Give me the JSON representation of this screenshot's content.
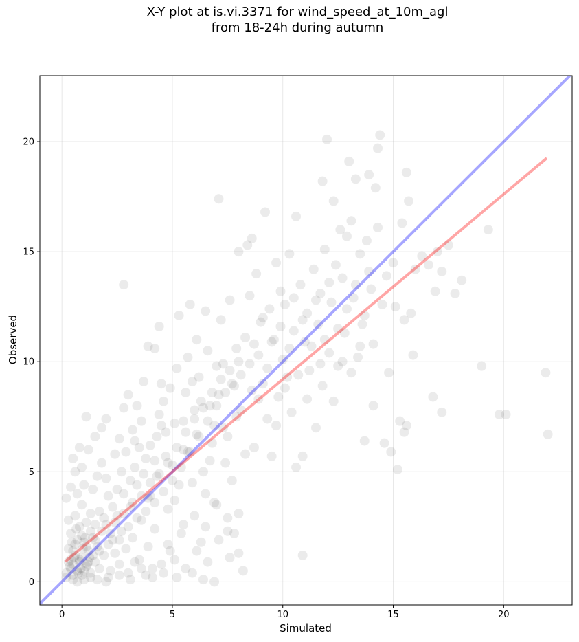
{
  "chart_data": {
    "type": "scatter",
    "title_line1": "X-Y plot at is.vi.3371 for wind_speed_at_10m_agl",
    "title_line2": "from 18-24h during autumn",
    "xlabel": "Simulated",
    "ylabel": "Observed",
    "xlim": [
      -1.0,
      23.1
    ],
    "ylim": [
      -1.05,
      23.0
    ],
    "x_ticks": [
      0,
      5,
      10,
      15,
      20
    ],
    "y_ticks": [
      0,
      5,
      10,
      15,
      20
    ],
    "grid": true,
    "legend": "none",
    "point_color": "#000000",
    "point_alpha": 0.08,
    "identity_line": {
      "x": [
        -1.0,
        23.1
      ],
      "y": [
        -1.0,
        23.1
      ],
      "color": "#0000ff"
    },
    "fit_line": {
      "x": [
        0.15,
        21.95
      ],
      "y": [
        0.92,
        19.25
      ],
      "color": "#ff0000"
    },
    "points": [
      [
        0.3,
        1.5
      ],
      [
        0.5,
        0.8
      ],
      [
        0.6,
        1.2
      ],
      [
        0.7,
        0.5
      ],
      [
        0.8,
        1.0
      ],
      [
        0.9,
        0.3
      ],
      [
        1.0,
        1.8
      ],
      [
        1.1,
        0.7
      ],
      [
        0.4,
        2.2
      ],
      [
        0.2,
        0.4
      ],
      [
        0.5,
        0.1
      ],
      [
        0.8,
        2.5
      ],
      [
        1.2,
        1.4
      ],
      [
        1.3,
        0.2
      ],
      [
        0.6,
        3.0
      ],
      [
        0.3,
        2.8
      ],
      [
        0.9,
        3.5
      ],
      [
        1.4,
        2.0
      ],
      [
        1.5,
        0.9
      ],
      [
        1.6,
        1.6
      ],
      [
        0.2,
        3.8
      ],
      [
        0.4,
        4.3
      ],
      [
        0.6,
        5.0
      ],
      [
        0.5,
        5.6
      ],
      [
        0.7,
        4.0
      ],
      [
        1.0,
        4.4
      ],
      [
        0.9,
        5.2
      ],
      [
        1.2,
        6.0
      ],
      [
        0.8,
        6.1
      ],
      [
        1.5,
        6.6
      ],
      [
        1.1,
        7.5
      ],
      [
        1.8,
        7.0
      ],
      [
        2.0,
        7.4
      ],
      [
        1.7,
        3.2
      ],
      [
        2.0,
        2.6
      ],
      [
        1.9,
        1.2
      ],
      [
        2.2,
        0.5
      ],
      [
        2.3,
        1.9
      ],
      [
        2.5,
        3.0
      ],
      [
        2.6,
        0.8
      ],
      [
        2.7,
        2.3
      ],
      [
        2.8,
        4.0
      ],
      [
        2.9,
        1.5
      ],
      [
        3.0,
        0.4
      ],
      [
        3.1,
        3.4
      ],
      [
        3.2,
        2.0
      ],
      [
        3.3,
        5.2
      ],
      [
        3.4,
        4.4
      ],
      [
        3.5,
        1.0
      ],
      [
        3.6,
        2.8
      ],
      [
        2.4,
        5.8
      ],
      [
        2.6,
        6.5
      ],
      [
        2.8,
        7.9
      ],
      [
        3.0,
        8.5
      ],
      [
        3.2,
        6.9
      ],
      [
        3.4,
        8.0
      ],
      [
        3.6,
        7.3
      ],
      [
        3.8,
        5.6
      ],
      [
        3.9,
        3.8
      ],
      [
        4.0,
        6.2
      ],
      [
        4.1,
        0.6
      ],
      [
        4.2,
        2.4
      ],
      [
        4.3,
        4.8
      ],
      [
        4.4,
        7.6
      ],
      [
        4.5,
        9.0
      ],
      [
        4.6,
        8.2
      ],
      [
        4.7,
        6.8
      ],
      [
        4.8,
        3.3
      ],
      [
        4.9,
        1.4
      ],
      [
        5.0,
        5.3
      ],
      [
        3.7,
        9.1
      ],
      [
        3.9,
        10.7
      ],
      [
        4.2,
        10.6
      ],
      [
        4.4,
        11.6
      ],
      [
        5.1,
        7.2
      ],
      [
        5.2,
        9.7
      ],
      [
        5.3,
        12.1
      ],
      [
        5.4,
        2.2
      ],
      [
        5.5,
        6.0
      ],
      [
        5.6,
        8.6
      ],
      [
        5.7,
        10.2
      ],
      [
        5.8,
        12.6
      ],
      [
        5.9,
        4.5
      ],
      [
        6.0,
        7.8
      ],
      [
        6.1,
        11.0
      ],
      [
        6.2,
        9.3
      ],
      [
        6.3,
        1.8
      ],
      [
        6.4,
        5.0
      ],
      [
        6.5,
        12.3
      ],
      [
        6.6,
        10.5
      ],
      [
        6.7,
        8.0
      ],
      [
        6.8,
        6.3
      ],
      [
        6.9,
        3.6
      ],
      [
        7.0,
        9.8
      ],
      [
        7.1,
        17.4
      ],
      [
        7.2,
        11.9
      ],
      [
        7.3,
        7.0
      ],
      [
        7.4,
        5.4
      ],
      [
        7.5,
        2.9
      ],
      [
        7.6,
        12.8
      ],
      [
        2.8,
        13.5
      ],
      [
        6.9,
        0.0
      ],
      [
        6.4,
        0.1
      ],
      [
        5.9,
        0.4
      ],
      [
        7.8,
        2.2
      ],
      [
        8.0,
        1.3
      ],
      [
        8.2,
        0.5
      ],
      [
        7.7,
        4.6
      ],
      [
        7.9,
        7.5
      ],
      [
        8.1,
        9.4
      ],
      [
        8.3,
        11.1
      ],
      [
        8.4,
        15.3
      ],
      [
        8.5,
        13.0
      ],
      [
        8.6,
        8.7
      ],
      [
        8.7,
        6.1
      ],
      [
        8.8,
        14.0
      ],
      [
        8.9,
        10.3
      ],
      [
        9.0,
        11.8
      ],
      [
        9.1,
        9.0
      ],
      [
        9.2,
        16.8
      ],
      [
        8.6,
        15.6
      ],
      [
        8.0,
        15.0
      ],
      [
        9.3,
        7.4
      ],
      [
        9.4,
        12.4
      ],
      [
        9.5,
        5.7
      ],
      [
        9.6,
        11.0
      ],
      [
        9.7,
        14.5
      ],
      [
        9.8,
        8.4
      ],
      [
        9.9,
        13.2
      ],
      [
        10.0,
        10.1
      ],
      [
        10.1,
        12.6
      ],
      [
        10.2,
        9.3
      ],
      [
        10.3,
        14.9
      ],
      [
        10.4,
        7.7
      ],
      [
        10.5,
        11.4
      ],
      [
        10.6,
        16.6
      ],
      [
        10.6,
        5.2
      ],
      [
        10.8,
        13.5
      ],
      [
        10.9,
        5.7
      ],
      [
        11.0,
        10.9
      ],
      [
        10.9,
        1.2
      ],
      [
        11.1,
        12.2
      ],
      [
        11.2,
        9.6
      ],
      [
        11.4,
        14.2
      ],
      [
        11.5,
        7.0
      ],
      [
        11.6,
        11.7
      ],
      [
        11.7,
        13.1
      ],
      [
        11.8,
        8.9
      ],
      [
        11.9,
        15.1
      ],
      [
        12.0,
        20.1
      ],
      [
        11.8,
        18.2
      ],
      [
        12.1,
        10.4
      ],
      [
        12.2,
        12.7
      ],
      [
        12.3,
        17.3
      ],
      [
        12.4,
        14.4
      ],
      [
        12.5,
        9.8
      ],
      [
        12.6,
        16.0
      ],
      [
        12.7,
        13.8
      ],
      [
        12.8,
        11.3
      ],
      [
        12.9,
        15.7
      ],
      [
        13.0,
        19.1
      ],
      [
        13.1,
        16.4
      ],
      [
        13.2,
        12.9
      ],
      [
        13.3,
        18.3
      ],
      [
        13.4,
        10.2
      ],
      [
        13.5,
        14.9
      ],
      [
        13.6,
        11.7
      ],
      [
        13.7,
        6.4
      ],
      [
        13.8,
        15.5
      ],
      [
        13.9,
        18.5
      ],
      [
        14.0,
        13.3
      ],
      [
        14.1,
        8.0
      ],
      [
        14.2,
        17.9
      ],
      [
        14.3,
        16.1
      ],
      [
        14.4,
        20.3
      ],
      [
        14.3,
        19.7
      ],
      [
        14.5,
        12.6
      ],
      [
        14.6,
        6.3
      ],
      [
        14.7,
        13.9
      ],
      [
        14.8,
        9.5
      ],
      [
        14.9,
        5.9
      ],
      [
        15.0,
        14.5
      ],
      [
        15.1,
        12.5
      ],
      [
        15.2,
        5.1
      ],
      [
        15.3,
        7.3
      ],
      [
        15.4,
        16.3
      ],
      [
        15.5,
        11.9
      ],
      [
        15.6,
        18.6
      ],
      [
        15.7,
        17.3
      ],
      [
        15.8,
        12.2
      ],
      [
        15.6,
        7.1
      ],
      [
        15.5,
        6.8
      ],
      [
        15.9,
        10.3
      ],
      [
        16.0,
        14.2
      ],
      [
        16.3,
        14.8
      ],
      [
        16.6,
        14.4
      ],
      [
        16.8,
        8.4
      ],
      [
        16.9,
        13.2
      ],
      [
        17.0,
        15.0
      ],
      [
        17.2,
        14.1
      ],
      [
        17.2,
        7.7
      ],
      [
        17.5,
        15.3
      ],
      [
        17.8,
        13.1
      ],
      [
        18.1,
        13.7
      ],
      [
        19.0,
        9.8
      ],
      [
        19.3,
        16.0
      ],
      [
        19.8,
        7.6
      ],
      [
        20.1,
        7.6
      ],
      [
        21.9,
        9.5
      ],
      [
        22.0,
        6.7
      ],
      [
        1.3,
        0.4
      ],
      [
        1.6,
        0.1
      ],
      [
        2.1,
        0.2
      ],
      [
        0.7,
        0.0
      ],
      [
        1.0,
        0.1
      ],
      [
        2.4,
        1.3
      ],
      [
        3.3,
        0.9
      ],
      [
        3.8,
        0.3
      ],
      [
        4.5,
        0.8
      ],
      [
        5.2,
        0.2
      ],
      [
        0.4,
        1.0
      ],
      [
        0.6,
        1.7
      ],
      [
        0.9,
        2.1
      ],
      [
        1.1,
        2.7
      ],
      [
        1.3,
        3.1
      ],
      [
        1.4,
        4.2
      ],
      [
        1.6,
        4.8
      ],
      [
        1.8,
        5.4
      ],
      [
        2.0,
        4.7
      ],
      [
        2.1,
        3.9
      ],
      [
        2.3,
        3.4
      ],
      [
        2.5,
        4.2
      ],
      [
        2.7,
        5.0
      ],
      [
        2.9,
        5.9
      ],
      [
        3.1,
        4.6
      ],
      [
        3.3,
        6.4
      ],
      [
        3.5,
        6.1
      ],
      [
        3.7,
        4.9
      ],
      [
        4.0,
        3.9
      ],
      [
        4.2,
        5.5
      ],
      [
        4.3,
        6.6
      ],
      [
        4.5,
        7.1
      ],
      [
        4.7,
        5.7
      ],
      [
        4.9,
        8.8
      ],
      [
        5.1,
        3.7
      ],
      [
        5.3,
        4.4
      ],
      [
        5.5,
        7.3
      ],
      [
        5.7,
        5.9
      ],
      [
        5.9,
        9.1
      ],
      [
        6.1,
        6.7
      ],
      [
        6.3,
        8.2
      ],
      [
        6.5,
        4.0
      ],
      [
        6.7,
        5.5
      ],
      [
        6.9,
        7.1
      ],
      [
        7.1,
        8.5
      ],
      [
        7.3,
        9.9
      ],
      [
        7.5,
        6.6
      ],
      [
        7.7,
        9.0
      ],
      [
        7.9,
        10.6
      ],
      [
        8.1,
        7.8
      ],
      [
        8.3,
        5.8
      ],
      [
        8.5,
        9.9
      ],
      [
        8.7,
        10.8
      ],
      [
        8.9,
        8.3
      ],
      [
        9.1,
        12.0
      ],
      [
        9.3,
        9.7
      ],
      [
        9.5,
        10.9
      ],
      [
        9.7,
        7.1
      ],
      [
        9.9,
        11.6
      ],
      [
        10.1,
        8.8
      ],
      [
        10.3,
        10.6
      ],
      [
        10.5,
        12.9
      ],
      [
        10.7,
        9.4
      ],
      [
        10.9,
        11.9
      ],
      [
        11.1,
        8.3
      ],
      [
        11.3,
        10.7
      ],
      [
        11.5,
        12.8
      ],
      [
        11.7,
        9.9
      ],
      [
        11.9,
        11.0
      ],
      [
        12.1,
        13.6
      ],
      [
        12.3,
        8.2
      ],
      [
        12.5,
        11.5
      ],
      [
        12.7,
        10.0
      ],
      [
        12.9,
        12.4
      ],
      [
        13.1,
        9.5
      ],
      [
        13.3,
        13.5
      ],
      [
        13.5,
        10.7
      ],
      [
        13.7,
        12.1
      ],
      [
        13.9,
        14.1
      ],
      [
        14.1,
        10.8
      ],
      [
        0.2,
        0.2
      ],
      [
        0.4,
        0.6
      ],
      [
        0.5,
        0.3
      ],
      [
        0.8,
        0.9
      ],
      [
        1.0,
        0.5
      ],
      [
        1.2,
        0.9
      ],
      [
        1.4,
        1.2
      ],
      [
        1.5,
        1.9
      ],
      [
        1.7,
        0.6
      ],
      [
        1.8,
        2.3
      ],
      [
        0.3,
        0.9
      ],
      [
        0.5,
        1.4
      ],
      [
        0.7,
        1.9
      ],
      [
        0.9,
        1.1
      ],
      [
        1.1,
        1.6
      ],
      [
        1.3,
        2.3
      ],
      [
        1.5,
        2.6
      ],
      [
        1.7,
        1.4
      ],
      [
        1.9,
        2.9
      ],
      [
        2.1,
        1.7
      ],
      [
        2.2,
        2.2
      ],
      [
        2.4,
        2.7
      ],
      [
        2.6,
        1.9
      ],
      [
        2.8,
        3.1
      ],
      [
        3.0,
        2.5
      ],
      [
        3.2,
        3.6
      ],
      [
        3.4,
        2.9
      ],
      [
        3.6,
        3.9
      ],
      [
        3.8,
        3.2
      ],
      [
        4.0,
        4.5
      ],
      [
        4.2,
        3.6
      ],
      [
        4.4,
        4.9
      ],
      [
        4.6,
        4.1
      ],
      [
        4.8,
        5.4
      ],
      [
        5.0,
        4.6
      ],
      [
        5.2,
        6.1
      ],
      [
        5.4,
        5.2
      ],
      [
        5.6,
        6.8
      ],
      [
        5.8,
        5.9
      ],
      [
        6.0,
        7.4
      ],
      [
        6.2,
        6.6
      ],
      [
        6.4,
        7.9
      ],
      [
        6.6,
        7.3
      ],
      [
        6.8,
        8.6
      ],
      [
        7.0,
        8.0
      ],
      [
        7.2,
        9.2
      ],
      [
        7.4,
        8.6
      ],
      [
        7.6,
        9.6
      ],
      [
        7.8,
        8.9
      ],
      [
        8.0,
        10.0
      ],
      [
        0.35,
        0.7
      ],
      [
        0.55,
        1.1
      ],
      [
        0.75,
        0.4
      ],
      [
        0.95,
        1.5
      ],
      [
        1.15,
        0.8
      ],
      [
        0.45,
        1.8
      ],
      [
        0.65,
        2.4
      ],
      [
        0.85,
        0.6
      ],
      [
        1.05,
        2.0
      ],
      [
        1.25,
        1.1
      ],
      [
        2.0,
        0.0
      ],
      [
        2.6,
        0.3
      ],
      [
        3.1,
        0.1
      ],
      [
        3.6,
        0.6
      ],
      [
        4.1,
        0.2
      ],
      [
        4.6,
        0.4
      ],
      [
        5.1,
        1.0
      ],
      [
        5.6,
        0.6
      ],
      [
        6.1,
        1.4
      ],
      [
        6.6,
        0.9
      ],
      [
        7.1,
        1.9
      ],
      [
        7.6,
        1.1
      ],
      [
        5.5,
        2.6
      ],
      [
        6.0,
        3.0
      ],
      [
        6.5,
        2.5
      ],
      [
        7.0,
        3.5
      ],
      [
        7.5,
        2.3
      ],
      [
        8.0,
        3.1
      ],
      [
        4.8,
        1.7
      ],
      [
        3.9,
        1.6
      ]
    ]
  }
}
